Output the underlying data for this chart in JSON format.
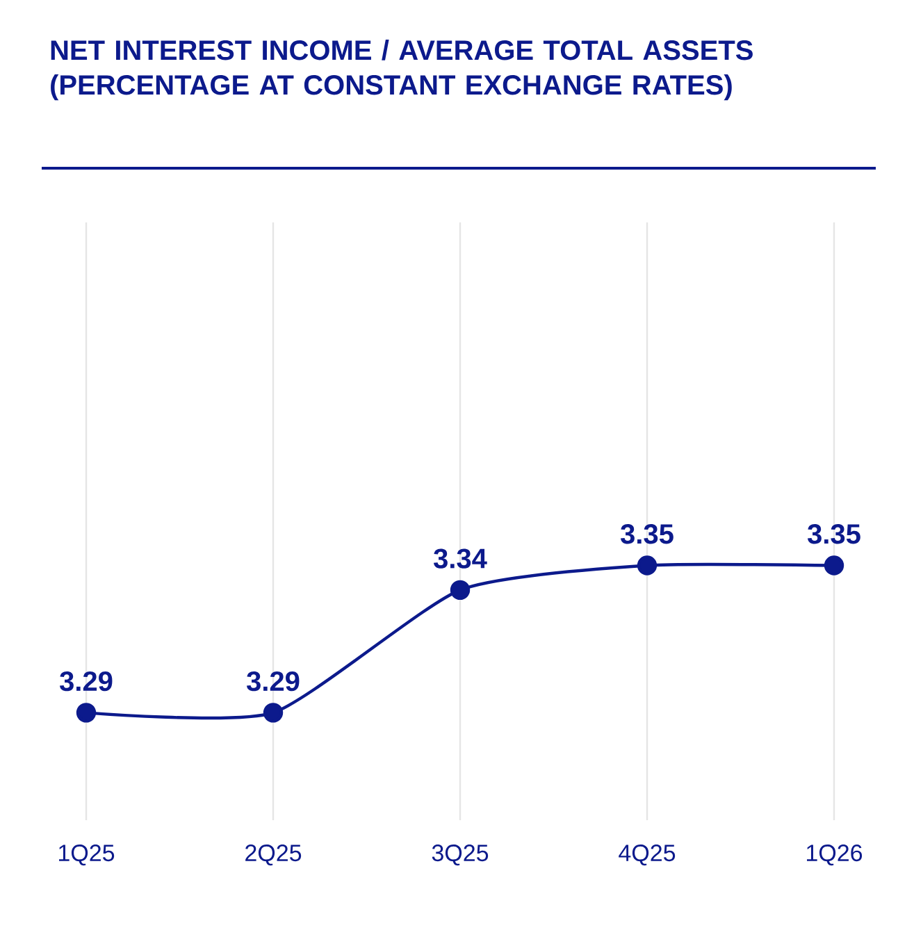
{
  "chart_data": {
    "type": "line",
    "title": "NET INTEREST INCOME / AVERAGE TOTAL ASSETS (PERCENTAGE AT CONSTANT EXCHANGE RATES)",
    "categories": [
      "1Q25",
      "2Q25",
      "3Q25",
      "4Q25",
      "1Q26"
    ],
    "series": [
      {
        "color": "#0c1a8c",
        "values": [
          3.29,
          3.29,
          3.34,
          3.35,
          3.35
        ]
      }
    ],
    "data_labels": true,
    "grid": "x",
    "marker": "circle",
    "line_style": "solid"
  }
}
